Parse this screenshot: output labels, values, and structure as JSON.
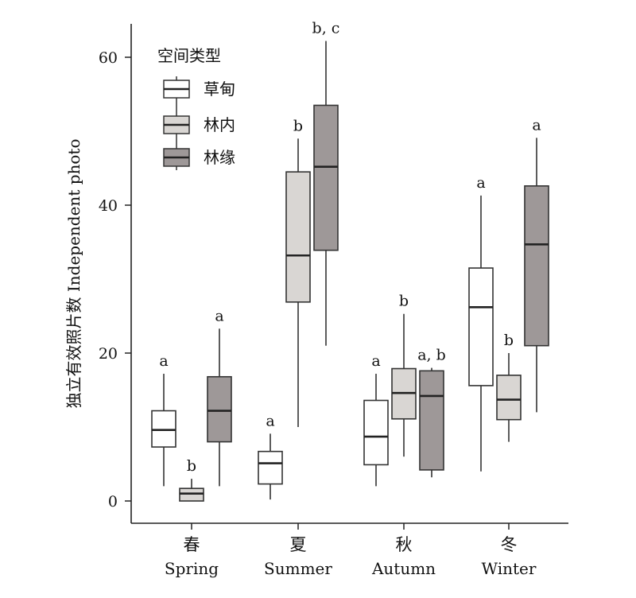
{
  "chart_data": {
    "type": "boxplot",
    "ylabel": "独立有效照片数 Independent photo",
    "xlabel": "",
    "ylim": [
      -3,
      65
    ],
    "yticks": [
      0,
      20,
      40,
      60
    ],
    "categories": [
      {
        "cn": "春",
        "en": "Spring"
      },
      {
        "cn": "夏",
        "en": "Summer"
      },
      {
        "cn": "秋",
        "en": "Autumn"
      },
      {
        "cn": "冬",
        "en": "Winter"
      }
    ],
    "legend": {
      "title": "空间类型",
      "position": "top-left"
    },
    "series": [
      {
        "name": "草甸",
        "color": "#ffffff",
        "boxes": [
          {
            "min": 2,
            "q1": 7.3,
            "median": 9.6,
            "q3": 12.2,
            "max": 17.2,
            "label": "a"
          },
          {
            "min": 0.2,
            "q1": 2.3,
            "median": 5.1,
            "q3": 6.7,
            "max": 9.1,
            "label": "a"
          },
          {
            "min": 2,
            "q1": 4.9,
            "median": 8.7,
            "q3": 13.6,
            "max": 17.2,
            "label": "a"
          },
          {
            "min": 4,
            "q1": 15.6,
            "median": 26.2,
            "q3": 31.5,
            "max": 41.3,
            "label": "a"
          }
        ]
      },
      {
        "name": "林内",
        "color": "#d9d6d3",
        "boxes": [
          {
            "min": 0,
            "q1": 0,
            "median": 1,
            "q3": 1.7,
            "max": 3,
            "label": "b"
          },
          {
            "min": 10,
            "q1": 26.9,
            "median": 33.2,
            "q3": 44.5,
            "max": 49,
            "label": "b"
          },
          {
            "min": 6,
            "q1": 11.1,
            "median": 14.6,
            "q3": 17.9,
            "max": 25.3,
            "label": "b"
          },
          {
            "min": 8,
            "q1": 11,
            "median": 13.7,
            "q3": 17,
            "max": 20,
            "label": "b"
          }
        ]
      },
      {
        "name": "林缘",
        "color": "#9e9898",
        "boxes": [
          {
            "min": 2,
            "q1": 8,
            "median": 12.2,
            "q3": 16.8,
            "max": 23.3,
            "label": "a"
          },
          {
            "min": 21,
            "q1": 33.9,
            "median": 45.2,
            "q3": 53.5,
            "max": 62.2,
            "label": "b, c"
          },
          {
            "min": 3.2,
            "q1": 4.2,
            "median": 14.2,
            "q3": 17.6,
            "max": 18,
            "label": "a, b"
          },
          {
            "min": 12,
            "q1": 21,
            "median": 34.7,
            "q3": 42.6,
            "max": 49.1,
            "label": "a"
          }
        ]
      }
    ]
  }
}
